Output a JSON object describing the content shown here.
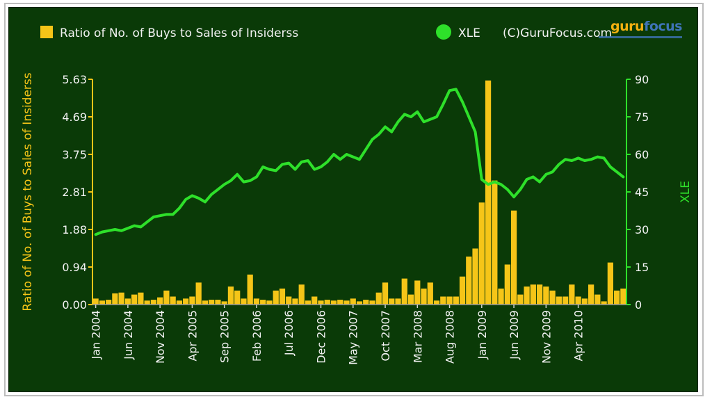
{
  "logo": {
    "part1": "guru",
    "part2": "focus"
  },
  "colors": {
    "background": "#0a3a07",
    "bar": "#f5c518",
    "line": "#2ee02a",
    "left_axis": "#f5c518",
    "right_axis": "#2ee02a",
    "tick_text": "#f2f2f2"
  },
  "chart_data": {
    "type": "bar",
    "legend": [
      {
        "name": "Ratio of No. of Buys to Sales of Insiderss",
        "marker": "square",
        "color": "#f5c518"
      },
      {
        "name": "XLE",
        "marker": "circle",
        "color": "#2ee02a"
      }
    ],
    "legend_note": "(C)GuruFocus.com",
    "ylabel": "Ratio of No. of Buys to Sales of Insiderss",
    "y2label": "XLE",
    "ylim": [
      0,
      5.63
    ],
    "y2lim": [
      0,
      90
    ],
    "yticks": [
      "0.00",
      "0.94",
      "1.88",
      "2.81",
      "3.75",
      "4.69",
      "5.63"
    ],
    "y2ticks": [
      "0",
      "15",
      "30",
      "45",
      "60",
      "75",
      "90"
    ],
    "xlabels": [
      "Jan 2004",
      "Jun 2004",
      "Nov 2004",
      "Apr 2005",
      "Sep 2005",
      "Feb 2006",
      "Jul 2006",
      "Dec 2006",
      "May 2007",
      "Oct 2007",
      "Mar 2008",
      "Aug 2008",
      "Jan 2009",
      "Jun 2009",
      "Nov 2009",
      "Apr 2010"
    ],
    "grid": false,
    "legend_position": "top",
    "series": [
      {
        "name": "Ratio of No. of Buys to Sales of Insiderss",
        "type": "bar",
        "axis": "left",
        "values": [
          0.15,
          0.1,
          0.12,
          0.28,
          0.3,
          0.15,
          0.25,
          0.3,
          0.1,
          0.12,
          0.18,
          0.35,
          0.2,
          0.1,
          0.15,
          0.2,
          0.55,
          0.1,
          0.12,
          0.12,
          0.08,
          0.45,
          0.35,
          0.15,
          0.75,
          0.15,
          0.12,
          0.1,
          0.35,
          0.4,
          0.2,
          0.15,
          0.5,
          0.1,
          0.2,
          0.1,
          0.12,
          0.1,
          0.12,
          0.1,
          0.15,
          0.08,
          0.12,
          0.1,
          0.3,
          0.55,
          0.15,
          0.15,
          0.65,
          0.25,
          0.6,
          0.4,
          0.55,
          0.1,
          0.2,
          0.2,
          0.2,
          0.7,
          1.2,
          1.4,
          2.55,
          5.6,
          3.1,
          0.4,
          1.0,
          2.35,
          0.25,
          0.45,
          0.5,
          0.5,
          0.45,
          0.35,
          0.2,
          0.2,
          0.5,
          0.2,
          0.15,
          0.5,
          0.25,
          0.08,
          1.05,
          0.35,
          0.4
        ]
      },
      {
        "name": "XLE",
        "type": "line",
        "axis": "right",
        "values": [
          28,
          29,
          29.5,
          30,
          29.5,
          30.5,
          31.5,
          31,
          33,
          35,
          35.5,
          36,
          36,
          38.5,
          42,
          43.5,
          42.5,
          41,
          44,
          46,
          48,
          49.5,
          52,
          49,
          49.5,
          51,
          55,
          54,
          53.5,
          56,
          56.5,
          54,
          57,
          57.5,
          54,
          55,
          57,
          60,
          58,
          60,
          59,
          58,
          62,
          66,
          68,
          71,
          69,
          73,
          76,
          75,
          77,
          73,
          74,
          75,
          80,
          85.5,
          86,
          81,
          75,
          69,
          50,
          48,
          49,
          48,
          46,
          43,
          46,
          50,
          51,
          49,
          52,
          53,
          56,
          58,
          57.5,
          58.5,
          57.5,
          58,
          59,
          58.5,
          55,
          53,
          51
        ]
      }
    ]
  }
}
